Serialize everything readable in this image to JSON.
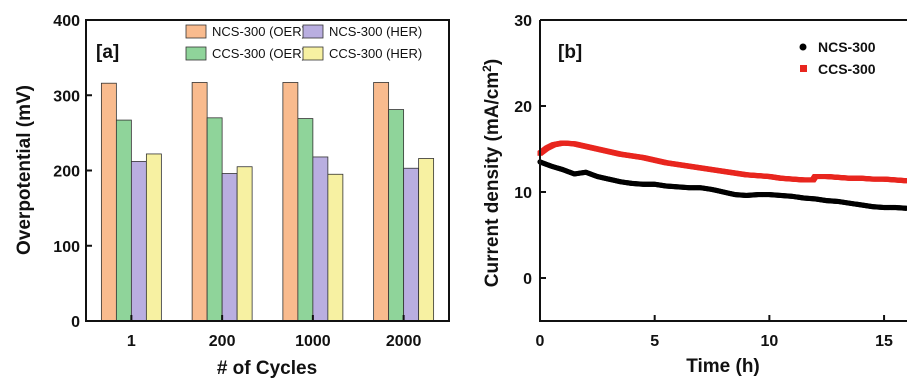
{
  "chart_data": [
    {
      "type": "bar",
      "panel_label": "[a]",
      "categories": [
        "1",
        "200",
        "1000",
        "2000"
      ],
      "series": [
        {
          "name": "NCS-300 (OER)",
          "color": "#f9bb8e",
          "values": [
            316,
            317,
            317,
            317
          ]
        },
        {
          "name": "CCS-300 (OER)",
          "color": "#8fd49a",
          "values": [
            267,
            270,
            269,
            281
          ]
        },
        {
          "name": "NCS-300 (HER)",
          "color": "#b9aee0",
          "values": [
            212,
            196,
            218,
            203
          ]
        },
        {
          "name": "CCS-300 (HER)",
          "color": "#f7f1a2",
          "values": [
            222,
            205,
            195,
            216
          ]
        }
      ],
      "xlabel": "# of Cycles",
      "ylabel": "Overpotential (mV)",
      "ylim": [
        0,
        400
      ],
      "yticks": [
        "0",
        "100",
        "200",
        "300",
        "400"
      ],
      "legend": "top"
    },
    {
      "type": "scatter",
      "panel_label": "[b]",
      "xlabel": "Time (h)",
      "ylabel": "Current density (mA/cm",
      "ylabel_sup": "2",
      "ylabel_close": ")",
      "xlim": [
        0,
        16
      ],
      "ylim": [
        -5,
        30
      ],
      "xticks": [
        "0",
        "5",
        "10",
        "15"
      ],
      "yticks": [
        "0",
        "10",
        "20",
        "30"
      ],
      "legend": "top-right",
      "series": [
        {
          "name": "NCS-300",
          "color": "#000000",
          "points": [
            [
              0,
              13.5
            ],
            [
              0.5,
              13.0
            ],
            [
              1,
              12.6
            ],
            [
              1.5,
              12.1
            ],
            [
              2,
              12.3
            ],
            [
              2.5,
              11.8
            ],
            [
              3,
              11.5
            ],
            [
              3.5,
              11.2
            ],
            [
              4,
              11.0
            ],
            [
              4.5,
              10.9
            ],
            [
              5,
              10.9
            ],
            [
              5.5,
              10.7
            ],
            [
              6,
              10.6
            ],
            [
              6.5,
              10.5
            ],
            [
              7,
              10.5
            ],
            [
              7.5,
              10.3
            ],
            [
              8,
              10.0
            ],
            [
              8.5,
              9.7
            ],
            [
              9,
              9.6
            ],
            [
              9.5,
              9.7
            ],
            [
              10,
              9.7
            ],
            [
              10.5,
              9.6
            ],
            [
              11,
              9.5
            ],
            [
              11.5,
              9.3
            ],
            [
              12,
              9.2
            ],
            [
              12.5,
              9.0
            ],
            [
              13,
              8.9
            ],
            [
              13.5,
              8.7
            ],
            [
              14,
              8.5
            ],
            [
              14.5,
              8.3
            ],
            [
              15,
              8.2
            ],
            [
              15.5,
              8.2
            ],
            [
              16,
              8.1
            ]
          ]
        },
        {
          "name": "CCS-300",
          "color": "#e8261f",
          "points": [
            [
              0,
              14.5
            ],
            [
              0.3,
              15.1
            ],
            [
              0.6,
              15.5
            ],
            [
              1,
              15.7
            ],
            [
              1.5,
              15.6
            ],
            [
              2,
              15.3
            ],
            [
              2.5,
              15.0
            ],
            [
              3,
              14.7
            ],
            [
              3.5,
              14.4
            ],
            [
              4,
              14.2
            ],
            [
              4.5,
              14.0
            ],
            [
              5,
              13.7
            ],
            [
              5.5,
              13.4
            ],
            [
              6,
              13.2
            ],
            [
              6.5,
              13.0
            ],
            [
              7,
              12.8
            ],
            [
              7.5,
              12.6
            ],
            [
              8,
              12.4
            ],
            [
              8.5,
              12.2
            ],
            [
              9,
              12.0
            ],
            [
              9.5,
              11.9
            ],
            [
              10,
              11.8
            ],
            [
              10.5,
              11.6
            ],
            [
              11,
              11.5
            ],
            [
              11.5,
              11.4
            ],
            [
              11.9,
              11.4
            ],
            [
              12,
              11.8
            ],
            [
              12.5,
              11.8
            ],
            [
              13,
              11.7
            ],
            [
              13.5,
              11.6
            ],
            [
              14,
              11.6
            ],
            [
              14.5,
              11.5
            ],
            [
              15,
              11.5
            ],
            [
              15.5,
              11.4
            ],
            [
              16,
              11.3
            ]
          ]
        }
      ]
    }
  ]
}
